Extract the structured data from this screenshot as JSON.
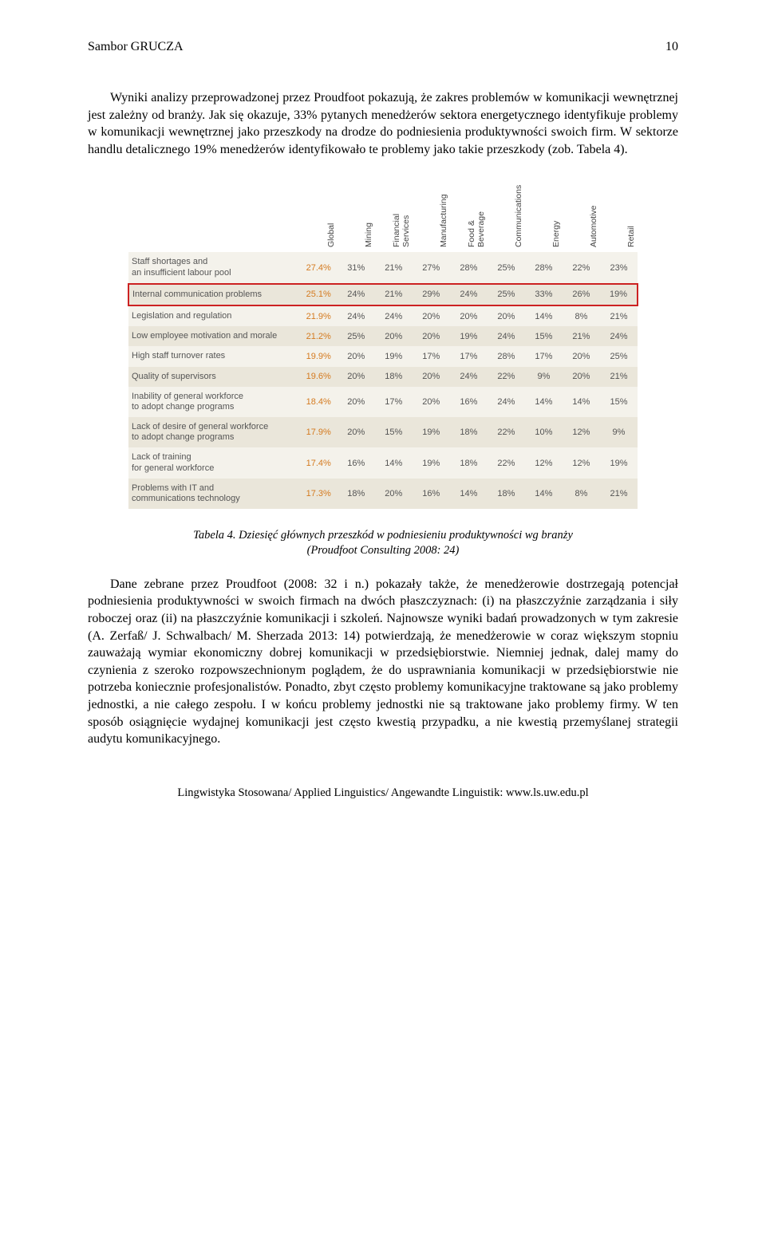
{
  "header": {
    "author": "Sambor GRUCZA",
    "page": "10"
  },
  "para1": "Wyniki analizy przeprowadzonej przez Proudfoot pokazują, że zakres problemów w komunikacji wewnętrznej jest zależny od branży. Jak się okazuje, 33% pytanych menedżerów sektora energetycznego identyfikuje problemy w komunikacji wewnętrznej jako przeszkody na drodze do podniesienia produktywności swoich firm. W sektorze handlu detalicznego 19% menedżerów identyfikowało te problemy jako takie przeszkody (zob. Tabela 4).",
  "table": {
    "columns": [
      "Global",
      "Mining",
      "Financial Services",
      "Manufacturing",
      "Food & Beverage",
      "Communications",
      "Energy",
      "Automotive",
      "Retail"
    ],
    "rows": [
      {
        "label": "Staff shortages and\nan insufficient labour pool",
        "cells": [
          "27.4%",
          "31%",
          "21%",
          "27%",
          "28%",
          "25%",
          "28%",
          "22%",
          "23%"
        ]
      },
      {
        "label": "Internal communication problems",
        "cells": [
          "25.1%",
          "24%",
          "21%",
          "29%",
          "24%",
          "25%",
          "33%",
          "26%",
          "19%"
        ],
        "highlight": true
      },
      {
        "label": "Legislation and regulation",
        "cells": [
          "21.9%",
          "24%",
          "24%",
          "20%",
          "20%",
          "20%",
          "14%",
          "8%",
          "21%"
        ]
      },
      {
        "label": "Low employee motivation and morale",
        "cells": [
          "21.2%",
          "25%",
          "20%",
          "20%",
          "19%",
          "24%",
          "15%",
          "21%",
          "24%"
        ]
      },
      {
        "label": "High staff turnover rates",
        "cells": [
          "19.9%",
          "20%",
          "19%",
          "17%",
          "17%",
          "28%",
          "17%",
          "20%",
          "25%"
        ]
      },
      {
        "label": "Quality of supervisors",
        "cells": [
          "19.6%",
          "20%",
          "18%",
          "20%",
          "24%",
          "22%",
          "9%",
          "20%",
          "21%"
        ]
      },
      {
        "label": "Inability of general workforce\nto adopt change programs",
        "cells": [
          "18.4%",
          "20%",
          "17%",
          "20%",
          "16%",
          "24%",
          "14%",
          "14%",
          "15%"
        ]
      },
      {
        "label": "Lack of desire of general workforce\nto adopt change programs",
        "cells": [
          "17.9%",
          "20%",
          "15%",
          "19%",
          "18%",
          "22%",
          "10%",
          "12%",
          "9%"
        ]
      },
      {
        "label": "Lack of training\nfor general workforce",
        "cells": [
          "17.4%",
          "16%",
          "14%",
          "19%",
          "18%",
          "22%",
          "12%",
          "12%",
          "19%"
        ]
      },
      {
        "label": "Problems with IT and\ncommunications technology",
        "cells": [
          "17.3%",
          "18%",
          "20%",
          "16%",
          "14%",
          "18%",
          "14%",
          "8%",
          "21%"
        ]
      }
    ],
    "stripe_colors": {
      "light": "#f4f2eb",
      "dark": "#eae6da"
    },
    "highlight_border": "#c22",
    "global_color": "#d47a1f"
  },
  "caption": "Tabela 4. Dziesięć głównych przeszkód w podniesieniu produktywności wg branży\n(Proudfoot Consulting 2008: 24)",
  "para2": "Dane zebrane przez Proudfoot (2008: 32 i n.) pokazały także, że menedżerowie dostrzegają potencjał podniesienia produktywności w swoich firmach na dwóch płaszczyznach: (i) na płaszczyźnie zarządzania i siły roboczej oraz (ii) na płaszczyźnie komunikacji i szkoleń. Najnowsze wyniki badań prowadzonych w tym zakresie (A. Zerfaß/ J. Schwalbach/ M. Sherzada 2013: 14) potwierdzają, że menedżerowie w coraz większym stopniu zauważają wymiar ekonomiczny dobrej komunikacji w przedsiębiorstwie. Niemniej jednak, dalej mamy do czynienia z szeroko rozpowszechnionym poglądem, że do usprawniania komunikacji w przedsiębiorstwie nie potrzeba koniecznie profesjonalistów. Ponadto, zbyt często problemy komunikacyjne traktowane są jako problemy jednostki, a nie całego zespołu. I w końcu problemy jednostki nie są traktowane jako problemy firmy. W ten sposób osiągnięcie wydajnej komunikacji jest często kwestią przypadku, a nie kwestią przemyślanej strategii audytu komunikacyjnego.",
  "footer": "Lingwistyka Stosowana/ Applied Linguistics/ Angewandte Linguistik: www.ls.uw.edu.pl"
}
